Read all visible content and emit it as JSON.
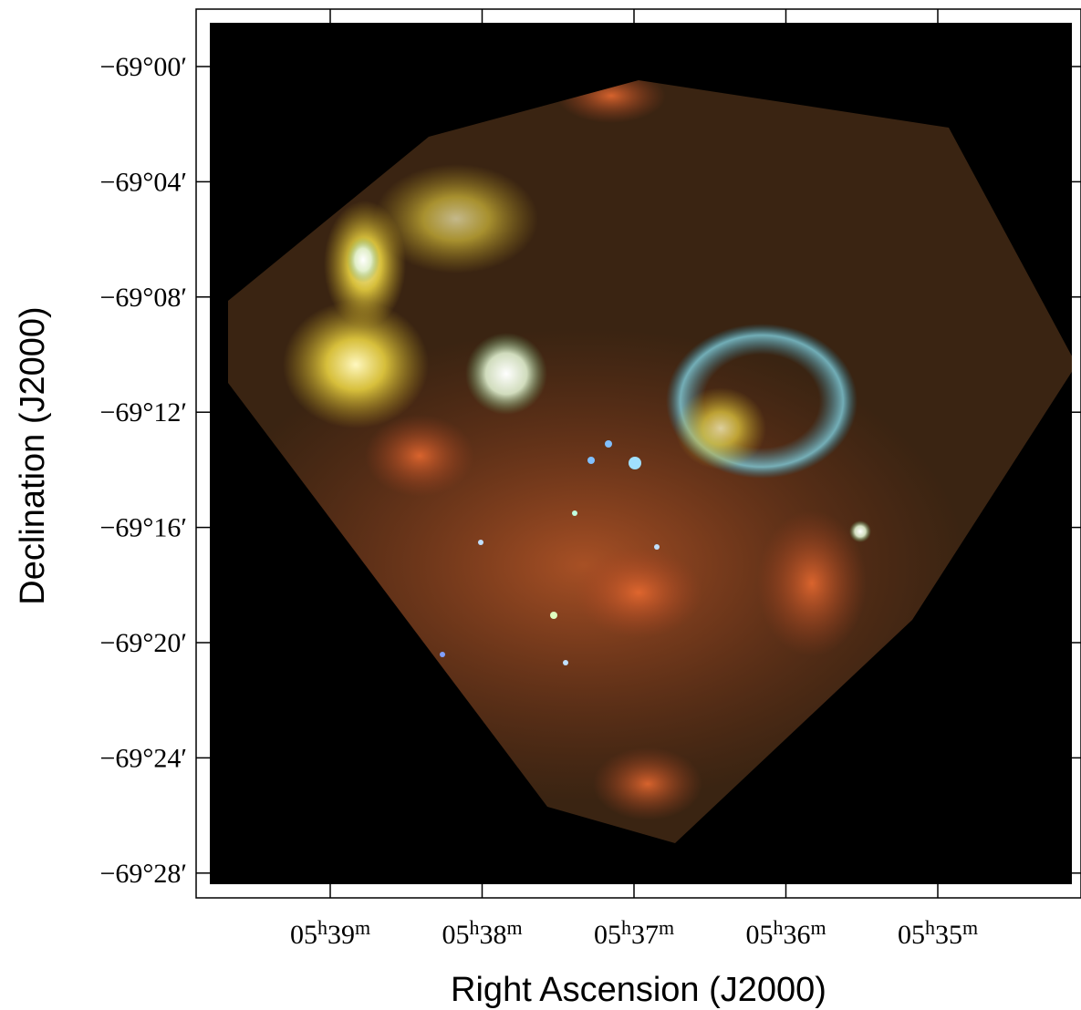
{
  "figure": {
    "x_axis": {
      "label": "Right Ascension  (J2000)",
      "ticks": [
        [
          "05",
          "h",
          "39",
          "m"
        ],
        [
          "05",
          "h",
          "38",
          "m"
        ],
        [
          "05",
          "h",
          "37",
          "m"
        ],
        [
          "05",
          "h",
          "36",
          "m"
        ],
        [
          "05",
          "h",
          "35",
          "m"
        ]
      ]
    },
    "y_axis": {
      "label": "Declination  (J2000)",
      "ticks": [
        "−69°00′",
        "−69°04′",
        "−69°08′",
        "−69°12′",
        "−69°16′",
        "−69°20′",
        "−69°24′",
        "−69°28′"
      ]
    }
  }
}
